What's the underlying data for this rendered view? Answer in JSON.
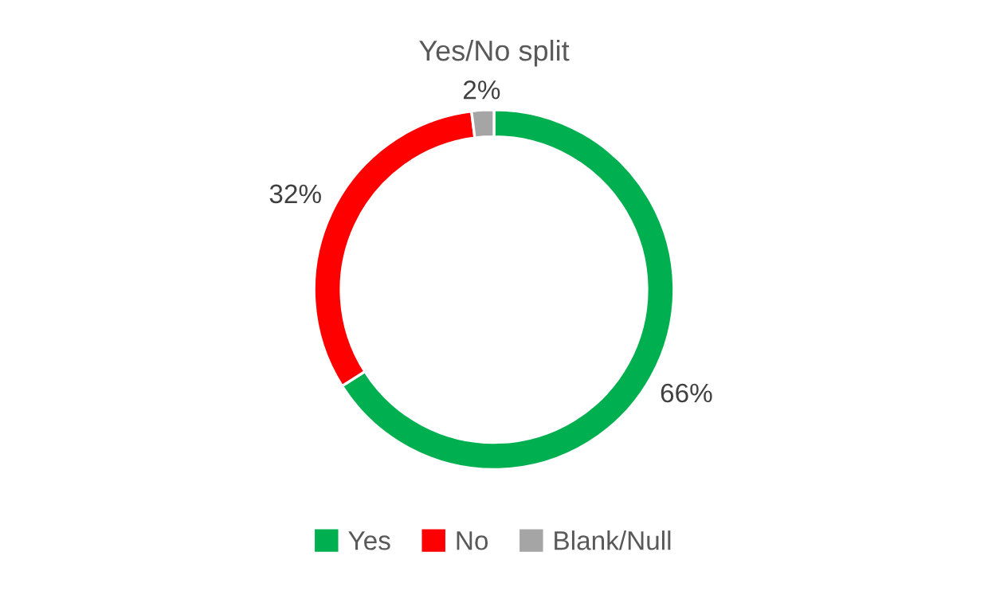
{
  "chart_data": {
    "type": "donut",
    "title": "Yes/No split",
    "categories": [
      "Yes",
      "No",
      "Blank/Null"
    ],
    "values": [
      66,
      32,
      2
    ],
    "colors": [
      "#00b050",
      "#ff0000",
      "#a5a5a5"
    ],
    "value_labels": [
      "66%",
      "32%",
      "2%"
    ],
    "legend": "bottom"
  }
}
